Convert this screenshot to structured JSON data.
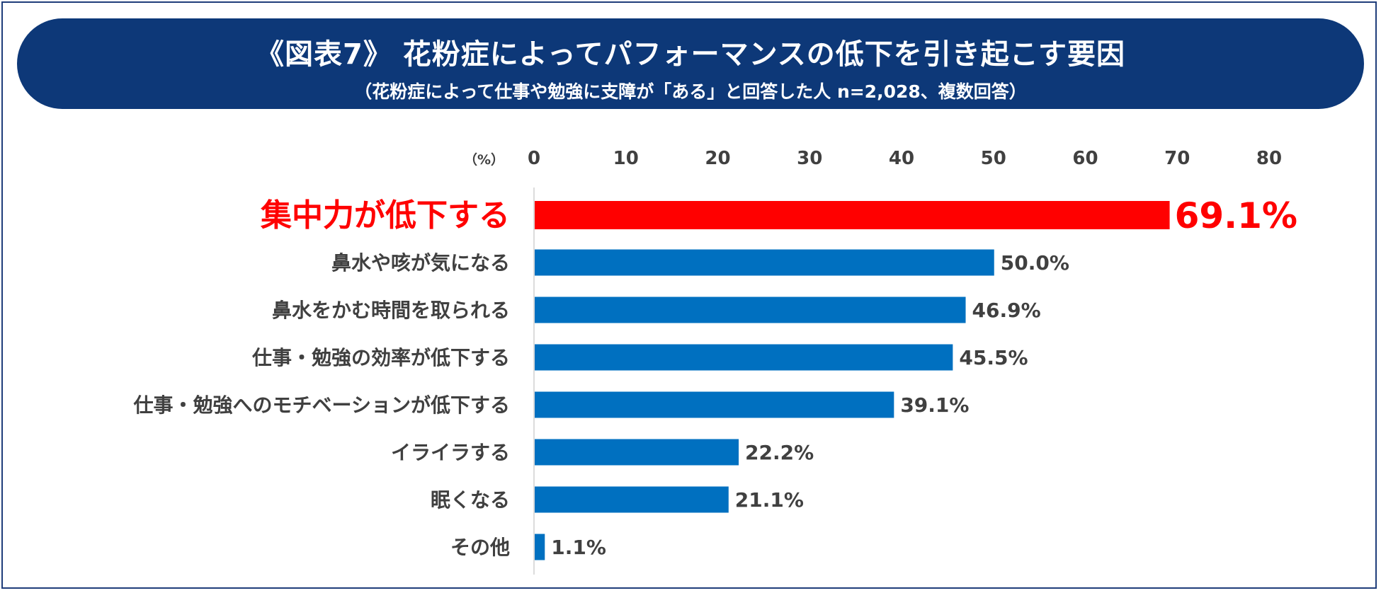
{
  "header": {
    "title": "《図表7》 花粉症によってパフォーマンスの低下を引き起こす要因",
    "subtitle": "（花粉症によって仕事や勉強に支障が「ある」と回答した人 n=2,028、複数回答）"
  },
  "colors": {
    "banner": "#0d3878",
    "highlight": "#ff0000",
    "bar": "#0070c0",
    "text": "#404040"
  },
  "chart_data": {
    "type": "bar",
    "orientation": "horizontal",
    "title": "《図表7》 花粉症によってパフォーマンスの低下を引き起こす要因",
    "subtitle": "（花粉症によって仕事や勉強に支障が「ある」と回答した人 n=2,028、複数回答）",
    "unit_label": "（%）",
    "xlim": [
      0,
      80
    ],
    "ticks": [
      "0",
      "10",
      "20",
      "30",
      "40",
      "50",
      "60",
      "70",
      "80"
    ],
    "categories": [
      "集中力が低下する",
      "鼻水や咳が気になる",
      "鼻水をかむ時間を取られる",
      "仕事・勉強の効率が低下する",
      "仕事・勉強へのモチベーションが低下する",
      "イライラする",
      "眠くなる",
      "その他"
    ],
    "values": [
      69.1,
      50.0,
      46.9,
      45.5,
      39.1,
      22.2,
      21.1,
      1.1
    ],
    "value_labels": [
      "69.1%",
      "50.0%",
      "46.9%",
      "45.5%",
      "39.1%",
      "22.2%",
      "21.1%",
      "1.1%"
    ],
    "highlight_index": 0,
    "grid": false
  }
}
